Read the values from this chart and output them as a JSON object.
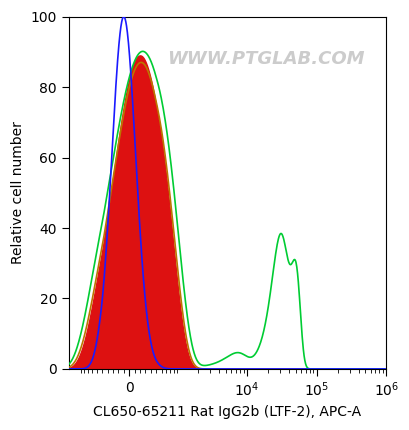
{
  "title": "WWW.PTGLAB.COM",
  "xlabel": "CL650-65211 Rat IgG2b (LTF-2), APC-A",
  "ylabel": "Relative cell number",
  "ylim": [
    0,
    100
  ],
  "yticks": [
    0,
    20,
    40,
    60,
    80,
    100
  ],
  "background_color": "#ffffff",
  "watermark_color": "#cccccc",
  "blue_line_color": "#1a1aff",
  "green_line_color": "#00cc33",
  "orange_line_color": "#bb7700",
  "red_fill_color": "#dd1111",
  "linthresh": 500,
  "linscale": 0.35,
  "xlim_min": -1500,
  "xlim_max": 1000000,
  "blue_mu": -100,
  "blue_sigma": 220,
  "blue_amp": 100,
  "red_mu": 200,
  "red_sigma": 500,
  "red_amp": 89,
  "orange_mu": 220,
  "orange_sigma": 530,
  "orange_amp": 87,
  "green_main_mu": 250,
  "green_main_sigma": 600,
  "green_main_amp": 90,
  "green_sec1_mu": 30000,
  "green_sec1_sigma": 8000,
  "green_sec1_amp": 37,
  "green_sec2_mu": 50000,
  "green_sec2_sigma": 8000,
  "green_sec2_amp": 29,
  "green_trough_mu": 7000,
  "green_trough_sigma": 2500,
  "green_trough_amp": 4
}
